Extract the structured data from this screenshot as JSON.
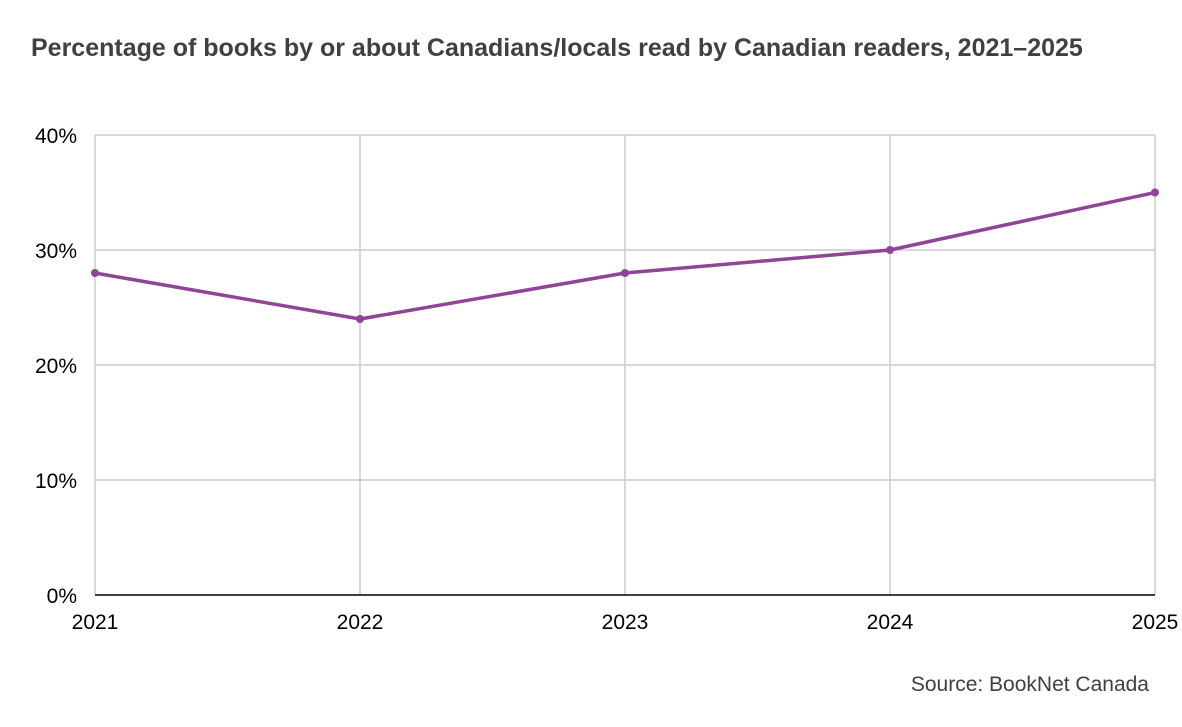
{
  "chart_data": {
    "type": "line",
    "title": "Percentage of books by or about Canadians/locals read by Canadian readers, 2021–2025",
    "xlabel": "",
    "ylabel": "",
    "x": [
      "2021",
      "2022",
      "2023",
      "2024",
      "2025"
    ],
    "series": [
      {
        "values": [
          28,
          24,
          28,
          30,
          35
        ],
        "color": "#8e4596"
      }
    ],
    "ylim": [
      0,
      40
    ],
    "yticks": [
      0,
      10,
      20,
      30,
      40
    ],
    "ytick_labels": [
      "0%",
      "10%",
      "20%",
      "30%",
      "40%"
    ],
    "grid": true,
    "legend": "none"
  },
  "source": "Source: BookNet Canada",
  "colors": {
    "line": "#8e4596",
    "grid": "#cccccc",
    "axis": "#000000",
    "title": "#404040"
  }
}
